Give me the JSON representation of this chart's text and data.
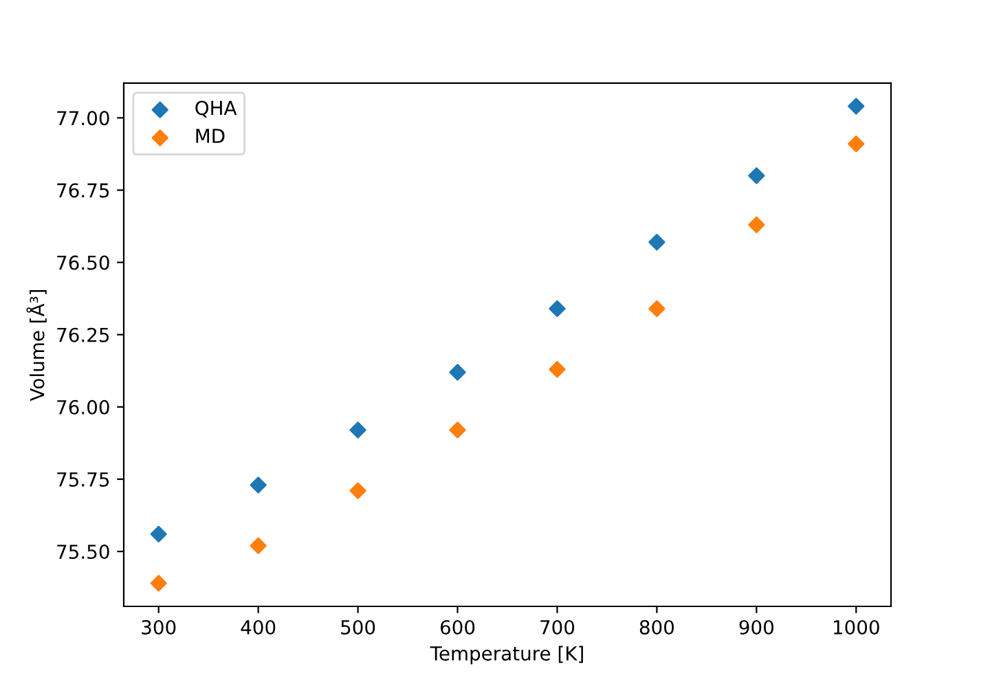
{
  "chart_data": {
    "type": "scatter",
    "xlabel": "Temperature [K]",
    "ylabel": "Volume [Å³]",
    "x": [
      300,
      400,
      500,
      600,
      700,
      800,
      900,
      1000
    ],
    "series": [
      {
        "name": "QHA",
        "color": "#1f77b4",
        "values": [
          75.56,
          75.73,
          75.92,
          76.12,
          76.34,
          76.57,
          76.8,
          77.04
        ]
      },
      {
        "name": "MD",
        "color": "#ff7f0e",
        "values": [
          75.39,
          75.52,
          75.71,
          75.92,
          76.13,
          76.34,
          76.63,
          76.91
        ]
      }
    ],
    "xlim": [
      265,
      1035
    ],
    "xticks": [
      300,
      400,
      500,
      600,
      700,
      800,
      900,
      1000
    ],
    "ylim": [
      75.31,
      77.12
    ],
    "yticks": [
      {
        "value": 75.5,
        "label": "75.50"
      },
      {
        "value": 75.75,
        "label": "75.75"
      },
      {
        "value": 76.0,
        "label": "76.00"
      },
      {
        "value": 76.25,
        "label": "76.25"
      },
      {
        "value": 76.5,
        "label": "76.50"
      },
      {
        "value": 76.75,
        "label": "76.75"
      },
      {
        "value": 77.0,
        "label": "77.00"
      }
    ],
    "marker": "diamond",
    "legend": "top left",
    "grid": false
  }
}
